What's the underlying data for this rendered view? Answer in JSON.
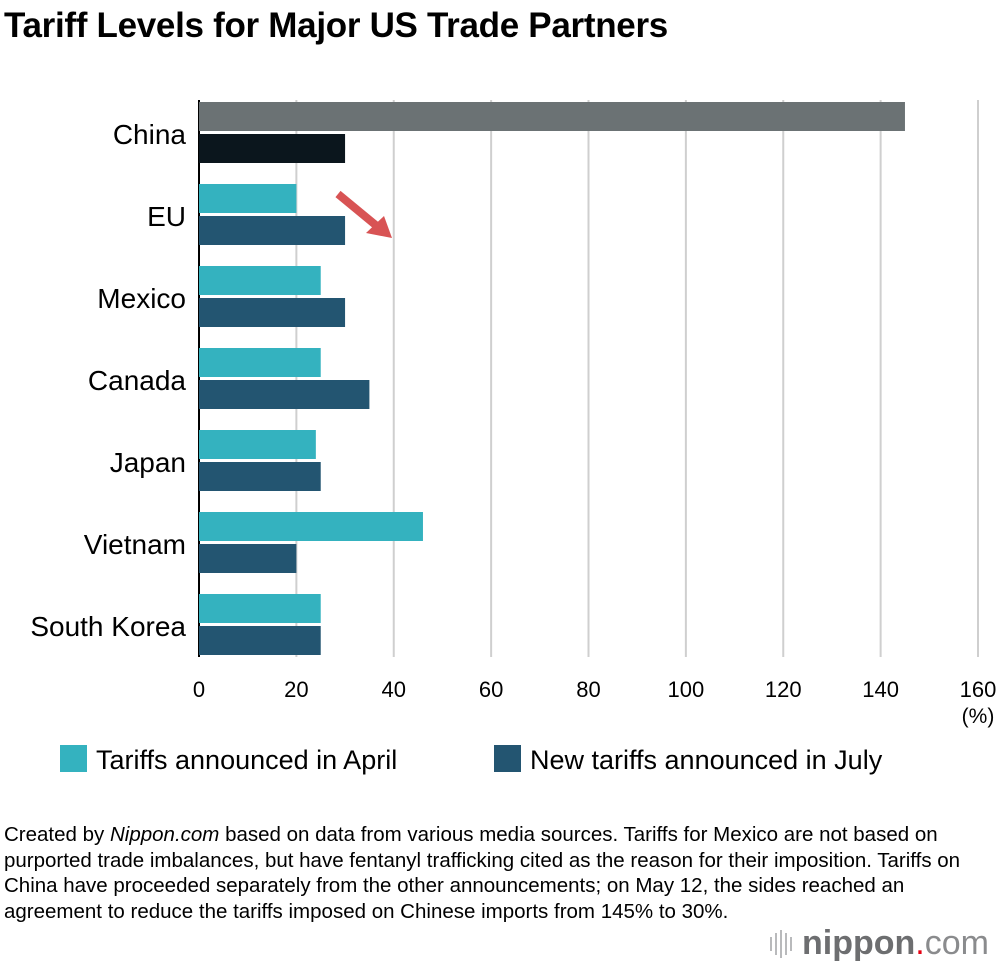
{
  "chart_data": {
    "type": "bar",
    "orientation": "horizontal",
    "title": "Tariff Levels for Major US Trade Partners",
    "categories": [
      "China",
      "EU",
      "Mexico",
      "Canada",
      "Japan",
      "Vietnam",
      "South Korea"
    ],
    "series": [
      {
        "name": "Tariffs announced in April",
        "values": [
          145,
          20,
          25,
          25,
          24,
          46,
          25
        ],
        "color": "#34b2bf",
        "china_color": "#6b7274"
      },
      {
        "name": "New tariffs announced in July",
        "values": [
          30,
          30,
          30,
          35,
          25,
          20,
          25
        ],
        "color": "#235571",
        "china_color": "#0b161d"
      }
    ],
    "xlim": [
      0,
      160
    ],
    "xticks": [
      "0",
      "20",
      "40",
      "60",
      "80",
      "100",
      "120",
      "140",
      "160"
    ],
    "xunit": "(%)",
    "grid": true,
    "legend": "bottom",
    "annotation": "red downward arrow near EU"
  },
  "note": {
    "prefix": "Created by ",
    "source": "Nippon.com",
    "text": " based on data from various media sources. Tariffs for Mexico are not based on purported trade imbalances, but have fentanyl trafficking cited as the reason for their imposition. Tariffs on China have proceeded separately from the other announcements; on May 12, the sides reached an agreement to reduce the tariffs imposed on Chinese imports from 145% to 30%."
  },
  "logo": {
    "name": "nippon",
    "dot": ".",
    "com": "com"
  }
}
